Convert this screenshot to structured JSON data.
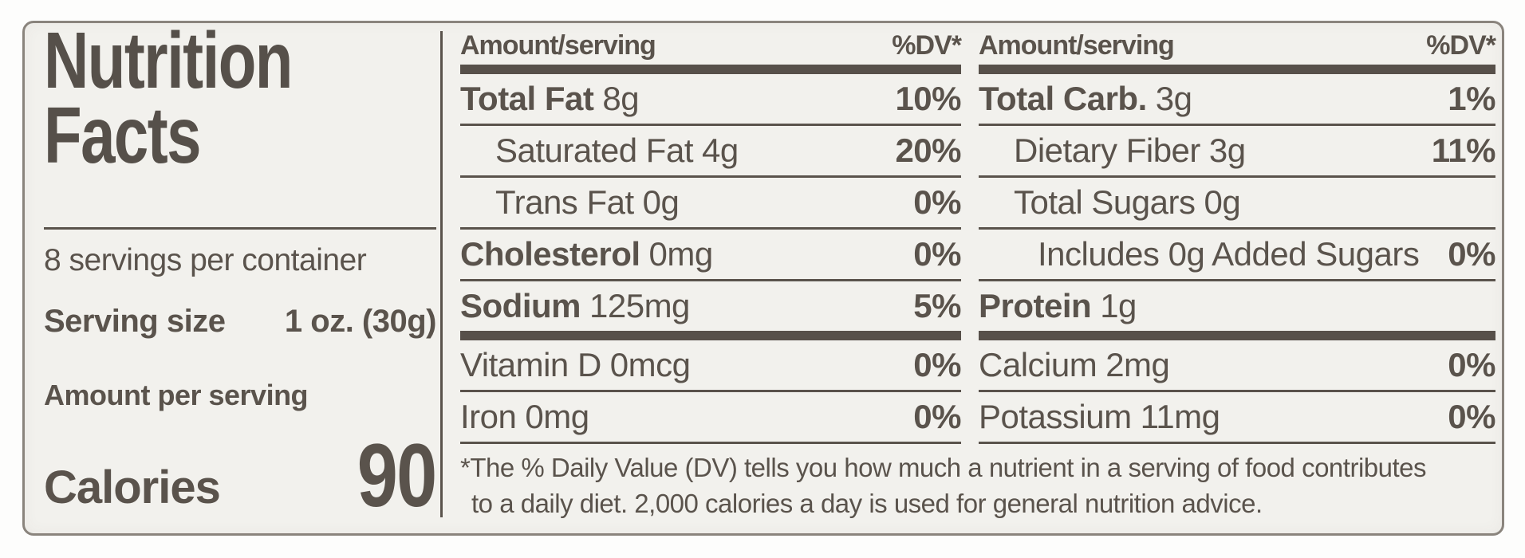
{
  "label": {
    "title_line1": "Nutrition",
    "title_line2": "Facts",
    "servings_per_container": "8 servings per container",
    "serving_size_label": "Serving size",
    "serving_size_value": "1 oz. (30g)",
    "amount_per_serving": "Amount per serving",
    "calories_label": "Calories",
    "calories_value": "90",
    "columns": [
      {
        "header_amount": "Amount/serving",
        "header_dv": "%DV*",
        "rows": [
          {
            "name": "Total Fat",
            "amount": "8g",
            "dv": "10%",
            "bold": true,
            "indent": 0
          },
          {
            "name": "Saturated Fat",
            "amount": "4g",
            "dv": "20%",
            "bold": false,
            "indent": 1
          },
          {
            "name": "Trans Fat",
            "amount": "0g",
            "dv": "0%",
            "bold": false,
            "indent": 1
          },
          {
            "name": "Cholesterol",
            "amount": "0mg",
            "dv": "0%",
            "bold": true,
            "indent": 0
          },
          {
            "name": "Sodium",
            "amount": "125mg",
            "dv": "5%",
            "bold": true,
            "indent": 0,
            "thick_after": true
          },
          {
            "name": "Vitamin D",
            "amount": "0mcg",
            "dv": "0%",
            "bold": false,
            "indent": 0
          },
          {
            "name": "Iron",
            "amount": "0mg",
            "dv": "0%",
            "bold": false,
            "indent": 0
          }
        ]
      },
      {
        "header_amount": "Amount/serving",
        "header_dv": "%DV*",
        "rows": [
          {
            "name": "Total Carb.",
            "amount": "3g",
            "dv": "1%",
            "bold": true,
            "indent": 0
          },
          {
            "name": "Dietary Fiber",
            "amount": "3g",
            "dv": "11%",
            "bold": false,
            "indent": 1
          },
          {
            "name": "Total Sugars",
            "amount": "0g",
            "dv": "",
            "bold": false,
            "indent": 1
          },
          {
            "name": "Includes 0g Added Sugars",
            "amount": "",
            "dv": "0%",
            "bold": false,
            "indent": 2
          },
          {
            "name": "Protein",
            "amount": "1g",
            "dv": "",
            "bold": true,
            "indent": 0,
            "thick_after": true
          },
          {
            "name": "Calcium",
            "amount": "2mg",
            "dv": "0%",
            "bold": false,
            "indent": 0
          },
          {
            "name": "Potassium",
            "amount": "11mg",
            "dv": "0%",
            "bold": false,
            "indent": 0
          }
        ]
      }
    ],
    "footnote_line1": "*The % Daily Value (DV) tells you how much a nutrient in a serving of food contributes",
    "footnote_line2": "to a daily diet. 2,000 calories a day is used for general nutrition advice."
  },
  "colors": {
    "ink": "#5a534c",
    "title_ink": "#56504a",
    "label_bg": "#f2f1ed",
    "page_bg": "#fdfdfc",
    "border": "#8a847d",
    "thick_bar": "#57504a"
  }
}
